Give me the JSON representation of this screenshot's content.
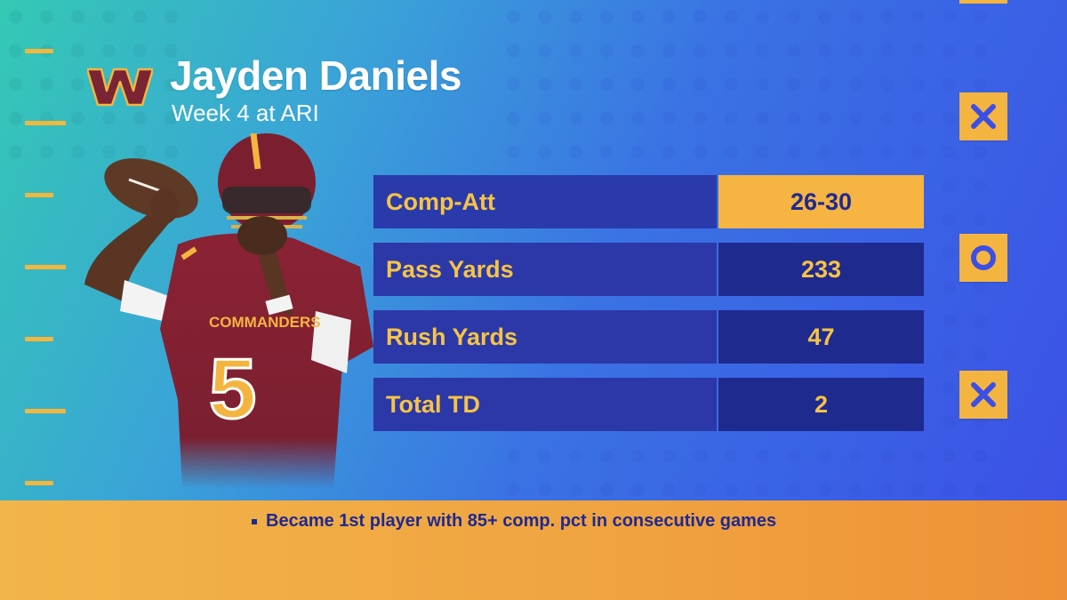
{
  "header": {
    "player_name": "Jayden Daniels",
    "subtitle": "Week 4 at ARI"
  },
  "team": {
    "logo_icon": "commanders-w-logo",
    "primary_color": "#7b2433",
    "accent_color": "#f6b443"
  },
  "stats": [
    {
      "label": "Comp-Att",
      "value": "26-30",
      "highlighted": true
    },
    {
      "label": "Pass Yards",
      "value": "233",
      "highlighted": false
    },
    {
      "label": "Rush Yards",
      "value": "47",
      "highlighted": false
    },
    {
      "label": "Total TD",
      "value": "2",
      "highlighted": false
    }
  ],
  "play_marks": [
    {
      "icon": "x-mark-icon"
    },
    {
      "icon": "o-mark-icon"
    },
    {
      "icon": "x-mark-icon"
    }
  ],
  "jersey": {
    "wordmark": "COMMANDERS",
    "number": "5"
  },
  "footer": {
    "note": "Became 1st player with 85+ comp. pct in consecutive games"
  },
  "colors": {
    "stat_label_bg": "#2c38a8",
    "stat_value_bg": "#1f2a8f",
    "stat_text": "#f6c445",
    "footer_bg": "#f0a240"
  }
}
